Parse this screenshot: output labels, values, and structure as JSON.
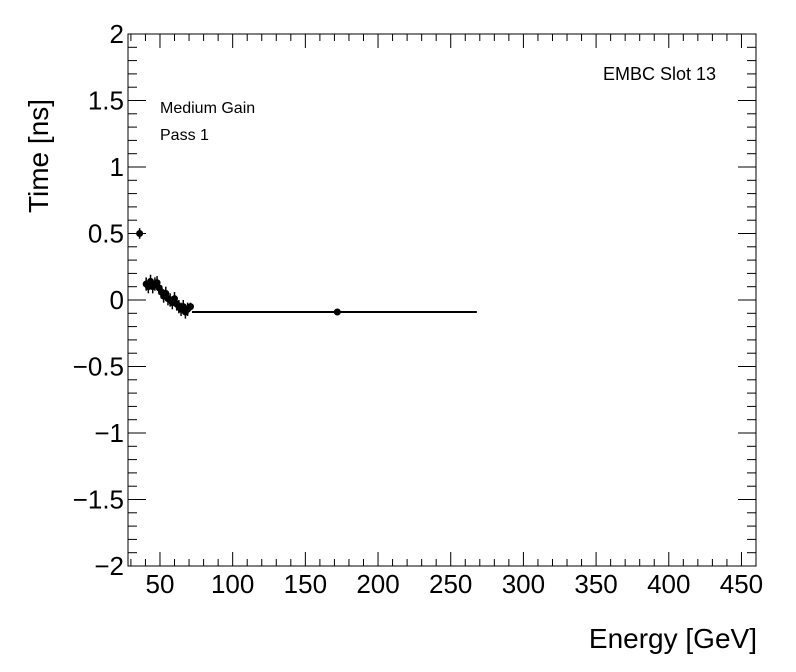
{
  "chart_data": {
    "type": "scatter",
    "title": "",
    "xlabel": "Energy [GeV]",
    "ylabel": "Time [ns]",
    "xlim": [
      28,
      460
    ],
    "ylim": [
      -2,
      2
    ],
    "xticks": [
      50,
      100,
      150,
      200,
      250,
      300,
      350,
      400,
      450
    ],
    "xtick_labels": [
      "50",
      "100",
      "150",
      "200",
      "250",
      "300",
      "350",
      "400",
      "450"
    ],
    "yticks": [
      -2,
      -1.5,
      -1,
      -0.5,
      0,
      0.5,
      1,
      1.5,
      2
    ],
    "ytick_labels": [
      "−2",
      "−1.5",
      "−1",
      "−0.5",
      "0",
      "0.5",
      "1",
      "1.5",
      "2"
    ],
    "grid": false,
    "annotations": {
      "slot": "EMBC Slot 13",
      "gain": "Medium Gain",
      "pass": "Pass 1"
    },
    "fit_line": {
      "x": [
        72,
        268
      ],
      "y": [
        -0.09,
        -0.09
      ]
    },
    "points": [
      {
        "x": 36.0,
        "y": 0.5,
        "yerr": 0.04,
        "xerr": 1.5
      },
      {
        "x": 40.5,
        "y": 0.12,
        "yerr": 0.05,
        "xerr": 1.0
      },
      {
        "x": 42.0,
        "y": 0.1,
        "yerr": 0.05,
        "xerr": 1.0
      },
      {
        "x": 43.5,
        "y": 0.14,
        "yerr": 0.05,
        "xerr": 1.0
      },
      {
        "x": 45.0,
        "y": 0.1,
        "yerr": 0.05,
        "xerr": 1.0
      },
      {
        "x": 46.5,
        "y": 0.12,
        "yerr": 0.05,
        "xerr": 1.0
      },
      {
        "x": 48.0,
        "y": 0.13,
        "yerr": 0.05,
        "xerr": 1.0
      },
      {
        "x": 49.5,
        "y": 0.09,
        "yerr": 0.05,
        "xerr": 1.0
      },
      {
        "x": 51.0,
        "y": 0.06,
        "yerr": 0.05,
        "xerr": 1.0
      },
      {
        "x": 52.5,
        "y": 0.03,
        "yerr": 0.05,
        "xerr": 1.0
      },
      {
        "x": 54.0,
        "y": 0.05,
        "yerr": 0.05,
        "xerr": 1.0
      },
      {
        "x": 55.5,
        "y": 0.01,
        "yerr": 0.05,
        "xerr": 1.0
      },
      {
        "x": 57.0,
        "y": 0.0,
        "yerr": 0.05,
        "xerr": 1.0
      },
      {
        "x": 58.5,
        "y": -0.02,
        "yerr": 0.05,
        "xerr": 1.0
      },
      {
        "x": 60.0,
        "y": 0.01,
        "yerr": 0.05,
        "xerr": 1.0
      },
      {
        "x": 61.5,
        "y": -0.03,
        "yerr": 0.05,
        "xerr": 1.0
      },
      {
        "x": 63.0,
        "y": -0.05,
        "yerr": 0.05,
        "xerr": 1.0
      },
      {
        "x": 64.5,
        "y": -0.07,
        "yerr": 0.05,
        "xerr": 1.0
      },
      {
        "x": 66.0,
        "y": -0.05,
        "yerr": 0.05,
        "xerr": 1.0
      },
      {
        "x": 67.5,
        "y": -0.09,
        "yerr": 0.05,
        "xerr": 1.0
      },
      {
        "x": 69.0,
        "y": -0.07,
        "yerr": 0.05,
        "xerr": 1.0
      },
      {
        "x": 71.0,
        "y": -0.05,
        "yerr": 0.03,
        "xerr": 1.0
      },
      {
        "x": 172.0,
        "y": -0.09,
        "yerr": 0.02,
        "xerr": 2.0
      }
    ]
  }
}
